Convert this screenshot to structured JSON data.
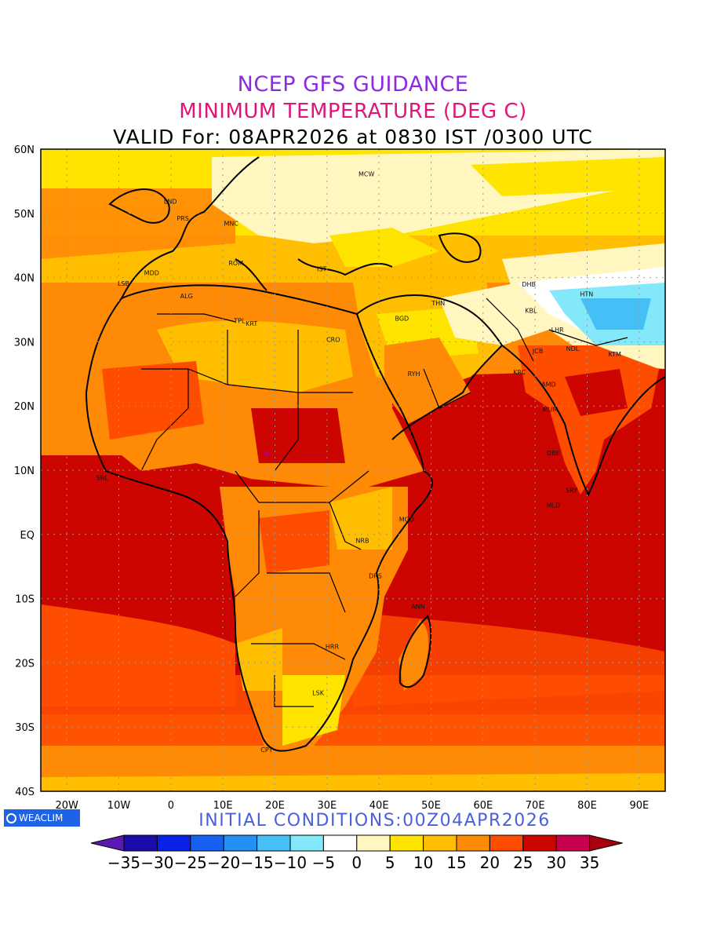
{
  "title": {
    "line1": "NCEP GFS GUIDANCE",
    "line2": "MINIMUM TEMPERATURE (DEG C)",
    "line3": "VALID For: 08APR2026 at 0830 IST /0300 UTC"
  },
  "footer": {
    "logo_text": "WEACLIM",
    "initial_conditions": "INITIAL CONDITIONS:00Z04APR2026"
  },
  "axes": {
    "lat_labels": [
      "60N",
      "50N",
      "40N",
      "30N",
      "20N",
      "10N",
      "EQ",
      "10S",
      "20S",
      "30S",
      "40S"
    ],
    "lon_labels": [
      "20W",
      "10W",
      "0",
      "10E",
      "20E",
      "30E",
      "40E",
      "50E",
      "60E",
      "70E",
      "80E",
      "90E"
    ]
  },
  "colorbar": {
    "labels": [
      "-35",
      "-30",
      "-25",
      "-20",
      "-15",
      "-10",
      "-5",
      "0",
      "5",
      "10",
      "15",
      "20",
      "25",
      "30",
      "35"
    ],
    "colors": [
      "#1a0ca8",
      "#0a22e8",
      "#1660f2",
      "#2391f4",
      "#45c0f7",
      "#84e8fb",
      "#ffffff",
      "#fff6c0",
      "#ffe400",
      "#ffbe00",
      "#ff8a05",
      "#ff4d00",
      "#cc0500",
      "#c80050"
    ],
    "under_color": "#5a1ab0",
    "over_color": "#a80010"
  },
  "cities": [
    "MCW",
    "LND",
    "PRS",
    "MNC",
    "ROM",
    "MDD",
    "IST",
    "ALG",
    "LSB",
    "TPL",
    "KRT",
    "CRO",
    "BGD",
    "THN",
    "DHB",
    "HTN",
    "KBL",
    "LHR",
    "NDL",
    "KTM",
    "JCB",
    "KRC",
    "AMD",
    "MUM",
    "RYH",
    "DBE",
    "SRY",
    "MLD",
    "MGD",
    "NRB",
    "DRS",
    "ANN",
    "HRR",
    "LSK",
    "CPT",
    "SRL"
  ]
}
